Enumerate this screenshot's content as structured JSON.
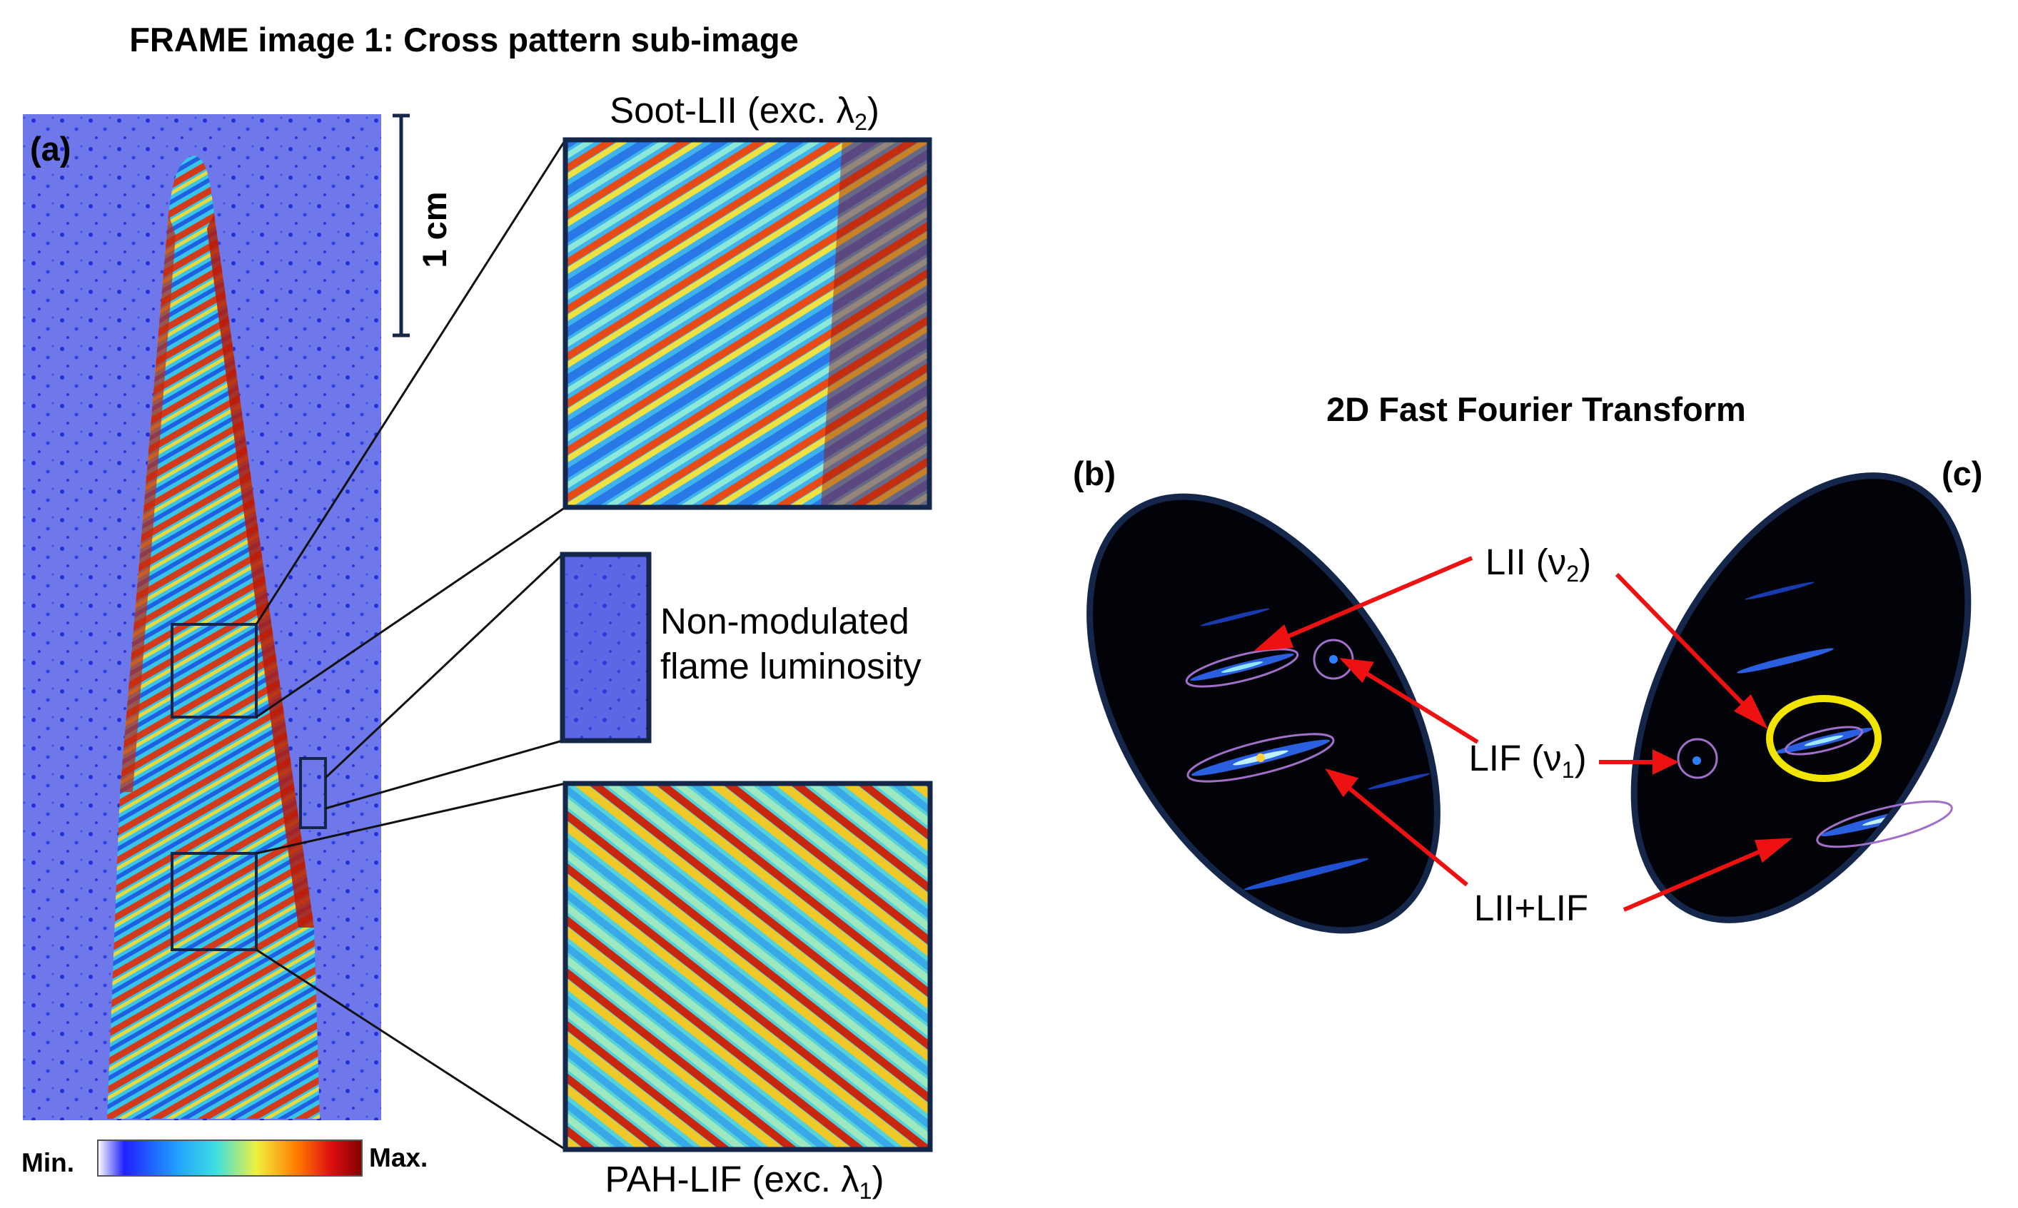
{
  "figure": {
    "title_left": "FRAME image 1: Cross pattern sub-image",
    "title_right": "2D Fast Fourier Transform",
    "panel_a": "(a)",
    "panel_b": "(b)",
    "panel_c": "(c)",
    "scale_bar": "1 cm",
    "colorbar": {
      "min_label": "Min.",
      "max_label": "Max."
    },
    "insets": {
      "soot": {
        "main": "Soot-LII (exc. λ",
        "sub": "2",
        "close": ")"
      },
      "nonmod": {
        "line1": "Non-modulated",
        "line2": "flame luminosity"
      },
      "pah": {
        "main": "PAH-LIF (exc. λ",
        "sub": "1",
        "close": ")"
      }
    },
    "fft_labels": {
      "lii": {
        "main": "LII (ν",
        "sub": "2",
        "close": ")"
      },
      "lif": {
        "main": "LIF (ν",
        "sub": "1",
        "close": ")"
      },
      "liilif": "LII+LIF"
    }
  },
  "colors": {
    "frame_border": "#14264a",
    "arrow": "#ee1111",
    "highlight": "#f2e600",
    "fft_background": "#020308",
    "background_blue": "#7d86ee"
  },
  "icons": [
    "pointer-arrow-icon"
  ]
}
